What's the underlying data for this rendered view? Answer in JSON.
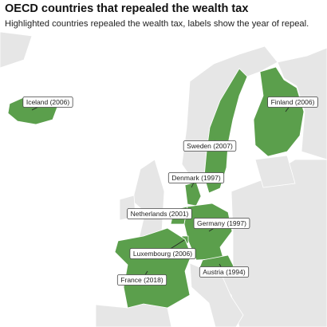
{
  "header": {
    "title": "OECD countries that repealed the wealth tax",
    "subtitle": "Highlighted countries repealed the wealth tax, labels show the year of repeal."
  },
  "labels": [
    "Iceland (2006)",
    "Finland (2006)",
    "Sweden (2007)",
    "Denmark (1997)",
    "Netherlands (2001)",
    "Germany (1997)",
    "Luxembourg (2006)",
    "France (2018)",
    "Austria (1994)"
  ]
}
